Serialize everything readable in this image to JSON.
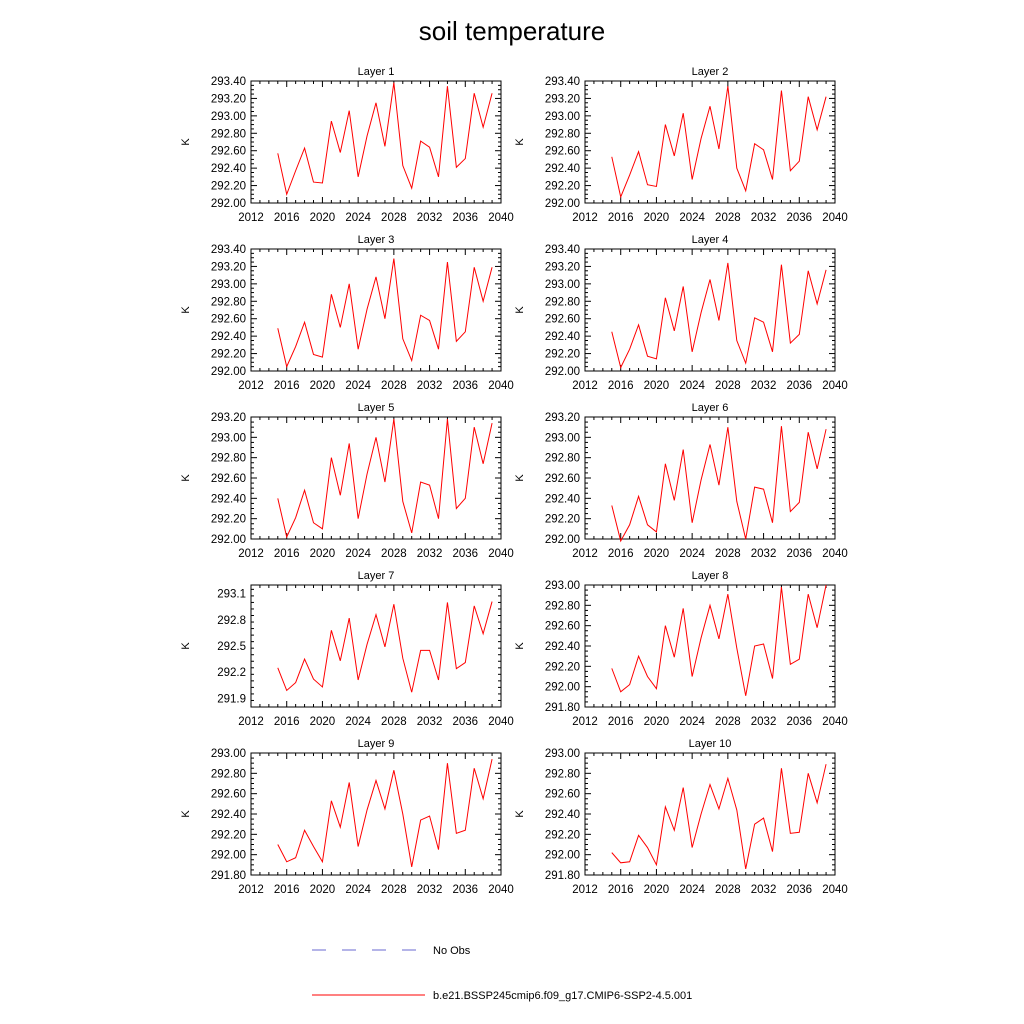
{
  "chart_data": {
    "type": "line",
    "title": "soil temperature",
    "x": [
      2015,
      2016,
      2017,
      2018,
      2019,
      2020,
      2021,
      2022,
      2023,
      2024,
      2025,
      2026,
      2027,
      2028,
      2029,
      2030,
      2031,
      2032,
      2033,
      2034,
      2035,
      2036,
      2037,
      2038,
      2039
    ],
    "xticks": [
      2012,
      2016,
      2020,
      2024,
      2028,
      2032,
      2036,
      2040
    ],
    "xlim": [
      2012,
      2040
    ],
    "panels": [
      {
        "title": "Layer 1",
        "ylabel": "K",
        "ylim": [
          292.0,
          293.4
        ],
        "yticks": [
          "292.00",
          "292.20",
          "292.40",
          "292.60",
          "292.80",
          "293.00",
          "293.20",
          "293.40"
        ],
        "series": [
          {
            "name": "b.e21.BSSP245cmip6.f09_g17.CMIP6-SSP2-4.5.001",
            "values": [
              292.57,
              292.1,
              292.37,
              292.63,
              292.24,
              292.23,
              292.94,
              292.58,
              293.06,
              292.3,
              292.77,
              293.15,
              292.65,
              293.38,
              292.43,
              292.17,
              292.71,
              292.64,
              292.3,
              293.34,
              292.41,
              292.51,
              293.26,
              292.87,
              293.26
            ]
          }
        ]
      },
      {
        "title": "Layer 2",
        "ylabel": "K",
        "ylim": [
          292.0,
          293.4
        ],
        "yticks": [
          "292.00",
          "292.20",
          "292.40",
          "292.60",
          "292.80",
          "293.00",
          "293.20",
          "293.40"
        ],
        "series": [
          {
            "name": "b.e21.BSSP245cmip6.f09_g17.CMIP6-SSP2-4.5.001",
            "values": [
              292.53,
              292.07,
              292.32,
              292.59,
              292.21,
              292.19,
              292.9,
              292.54,
              293.03,
              292.27,
              292.74,
              293.11,
              292.62,
              293.34,
              292.4,
              292.14,
              292.68,
              292.61,
              292.27,
              293.29,
              292.37,
              292.48,
              293.22,
              292.84,
              293.22
            ]
          }
        ]
      },
      {
        "title": "Layer 3",
        "ylabel": "K",
        "ylim": [
          292.0,
          293.4
        ],
        "yticks": [
          "292.00",
          "292.20",
          "292.40",
          "292.60",
          "292.80",
          "293.00",
          "293.20",
          "293.40"
        ],
        "series": [
          {
            "name": "b.e21.BSSP245cmip6.f09_g17.CMIP6-SSP2-4.5.001",
            "values": [
              292.49,
              292.05,
              292.28,
              292.56,
              292.19,
              292.16,
              292.88,
              292.5,
              293.0,
              292.25,
              292.71,
              293.08,
              292.6,
              293.29,
              292.37,
              292.12,
              292.64,
              292.58,
              292.25,
              293.25,
              292.34,
              292.45,
              293.19,
              292.8,
              293.19
            ]
          }
        ]
      },
      {
        "title": "Layer 4",
        "ylabel": "K",
        "ylim": [
          292.0,
          293.4
        ],
        "yticks": [
          "292.00",
          "292.20",
          "292.40",
          "292.60",
          "292.80",
          "293.00",
          "293.20",
          "293.40"
        ],
        "series": [
          {
            "name": "b.e21.BSSP245cmip6.f09_g17.CMIP6-SSP2-4.5.001",
            "values": [
              292.45,
              292.04,
              292.25,
              292.53,
              292.17,
              292.14,
              292.84,
              292.46,
              292.97,
              292.22,
              292.67,
              293.05,
              292.58,
              293.24,
              292.35,
              292.09,
              292.61,
              292.56,
              292.22,
              293.22,
              292.32,
              292.42,
              293.15,
              292.77,
              293.16
            ]
          }
        ]
      },
      {
        "title": "Layer 5",
        "ylabel": "K",
        "ylim": [
          292.0,
          293.2
        ],
        "yticks": [
          "292.00",
          "292.20",
          "292.40",
          "292.60",
          "292.80",
          "293.00",
          "293.20"
        ],
        "series": [
          {
            "name": "b.e21.BSSP245cmip6.f09_g17.CMIP6-SSP2-4.5.001",
            "values": [
              292.4,
              292.02,
              292.21,
              292.48,
              292.16,
              292.1,
              292.8,
              292.43,
              292.94,
              292.2,
              292.64,
              293.0,
              292.56,
              293.18,
              292.37,
              292.06,
              292.56,
              292.53,
              292.2,
              293.18,
              292.3,
              292.4,
              293.1,
              292.74,
              293.14
            ]
          }
        ]
      },
      {
        "title": "Layer 6",
        "ylabel": "K",
        "ylim": [
          292.0,
          293.2
        ],
        "yticks": [
          "292.00",
          "292.20",
          "292.40",
          "292.60",
          "292.80",
          "293.00",
          "293.20"
        ],
        "series": [
          {
            "name": "b.e21.BSSP245cmip6.f09_g17.CMIP6-SSP2-4.5.001",
            "values": [
              292.33,
              291.98,
              292.14,
              292.42,
              292.14,
              292.07,
              292.74,
              292.38,
              292.88,
              292.16,
              292.58,
              292.93,
              292.53,
              293.1,
              292.37,
              292.0,
              292.51,
              292.49,
              292.16,
              293.11,
              292.27,
              292.36,
              293.05,
              292.69,
              293.08
            ]
          }
        ]
      },
      {
        "title": "Layer 7",
        "ylabel": "K",
        "ylim": [
          291.8,
          293.2
        ],
        "yticks": [
          "291.9",
          "292.2",
          "292.5",
          "292.8",
          "293.1"
        ],
        "series": [
          {
            "name": "b.e21.BSSP245cmip6.f09_g17.CMIP6-SSP2-4.5.001",
            "values": [
              292.25,
              291.99,
              292.08,
              292.35,
              292.12,
              292.03,
              292.68,
              292.33,
              292.82,
              292.11,
              292.52,
              292.86,
              292.49,
              292.98,
              292.36,
              291.97,
              292.45,
              292.45,
              292.11,
              293.0,
              292.24,
              292.31,
              292.96,
              292.64,
              293.01
            ]
          }
        ]
      },
      {
        "title": "Layer 8",
        "ylabel": "K",
        "ylim": [
          291.8,
          293.0
        ],
        "yticks": [
          "291.80",
          "292.00",
          "292.20",
          "292.40",
          "292.60",
          "292.80",
          "293.00"
        ],
        "series": [
          {
            "name": "b.e21.BSSP245cmip6.f09_g17.CMIP6-SSP2-4.5.001",
            "values": [
              292.18,
              291.95,
              292.02,
              292.3,
              292.1,
              291.98,
              292.6,
              292.29,
              292.77,
              292.1,
              292.48,
              292.8,
              292.47,
              292.91,
              292.38,
              291.91,
              292.4,
              292.42,
              292.08,
              292.98,
              292.22,
              292.27,
              292.91,
              292.58,
              293.0
            ]
          }
        ]
      },
      {
        "title": "Layer 9",
        "ylabel": "K",
        "ylim": [
          291.8,
          293.0
        ],
        "yticks": [
          "291.80",
          "292.00",
          "292.20",
          "292.40",
          "292.60",
          "292.80",
          "293.00"
        ],
        "series": [
          {
            "name": "b.e21.BSSP245cmip6.f09_g17.CMIP6-SSP2-4.5.001",
            "values": [
              292.1,
              291.93,
              291.97,
              292.24,
              292.08,
              291.93,
              292.53,
              292.27,
              292.71,
              292.08,
              292.44,
              292.73,
              292.45,
              292.83,
              292.4,
              291.88,
              292.34,
              292.38,
              292.05,
              292.9,
              292.21,
              292.24,
              292.85,
              292.55,
              292.94
            ]
          }
        ]
      },
      {
        "title": "Layer 10",
        "ylabel": "K",
        "ylim": [
          291.8,
          293.0
        ],
        "yticks": [
          "291.80",
          "292.00",
          "292.20",
          "292.40",
          "292.60",
          "292.80",
          "293.00"
        ],
        "series": [
          {
            "name": "b.e21.BSSP245cmip6.f09_g17.CMIP6-SSP2-4.5.001",
            "values": [
              292.02,
              291.92,
              291.93,
              292.19,
              292.07,
              291.9,
              292.47,
              292.24,
              292.66,
              292.07,
              292.4,
              292.69,
              292.45,
              292.75,
              292.44,
              291.86,
              292.3,
              292.36,
              292.03,
              292.85,
              292.21,
              292.22,
              292.8,
              292.51,
              292.89
            ]
          }
        ]
      }
    ],
    "legend": {
      "placement": "bottom",
      "entries": [
        {
          "label": "No Obs",
          "style": "dashed",
          "color": "#6a6ad0"
        },
        {
          "label": "b.e21.BSSP245cmip6.f09_g17.CMIP6-SSP2-4.5.001",
          "style": "solid",
          "color": "#ff0000"
        }
      ]
    },
    "colors": {
      "series": "#ff0000",
      "obs": "#6a6ad0",
      "axes": "#000000"
    }
  }
}
